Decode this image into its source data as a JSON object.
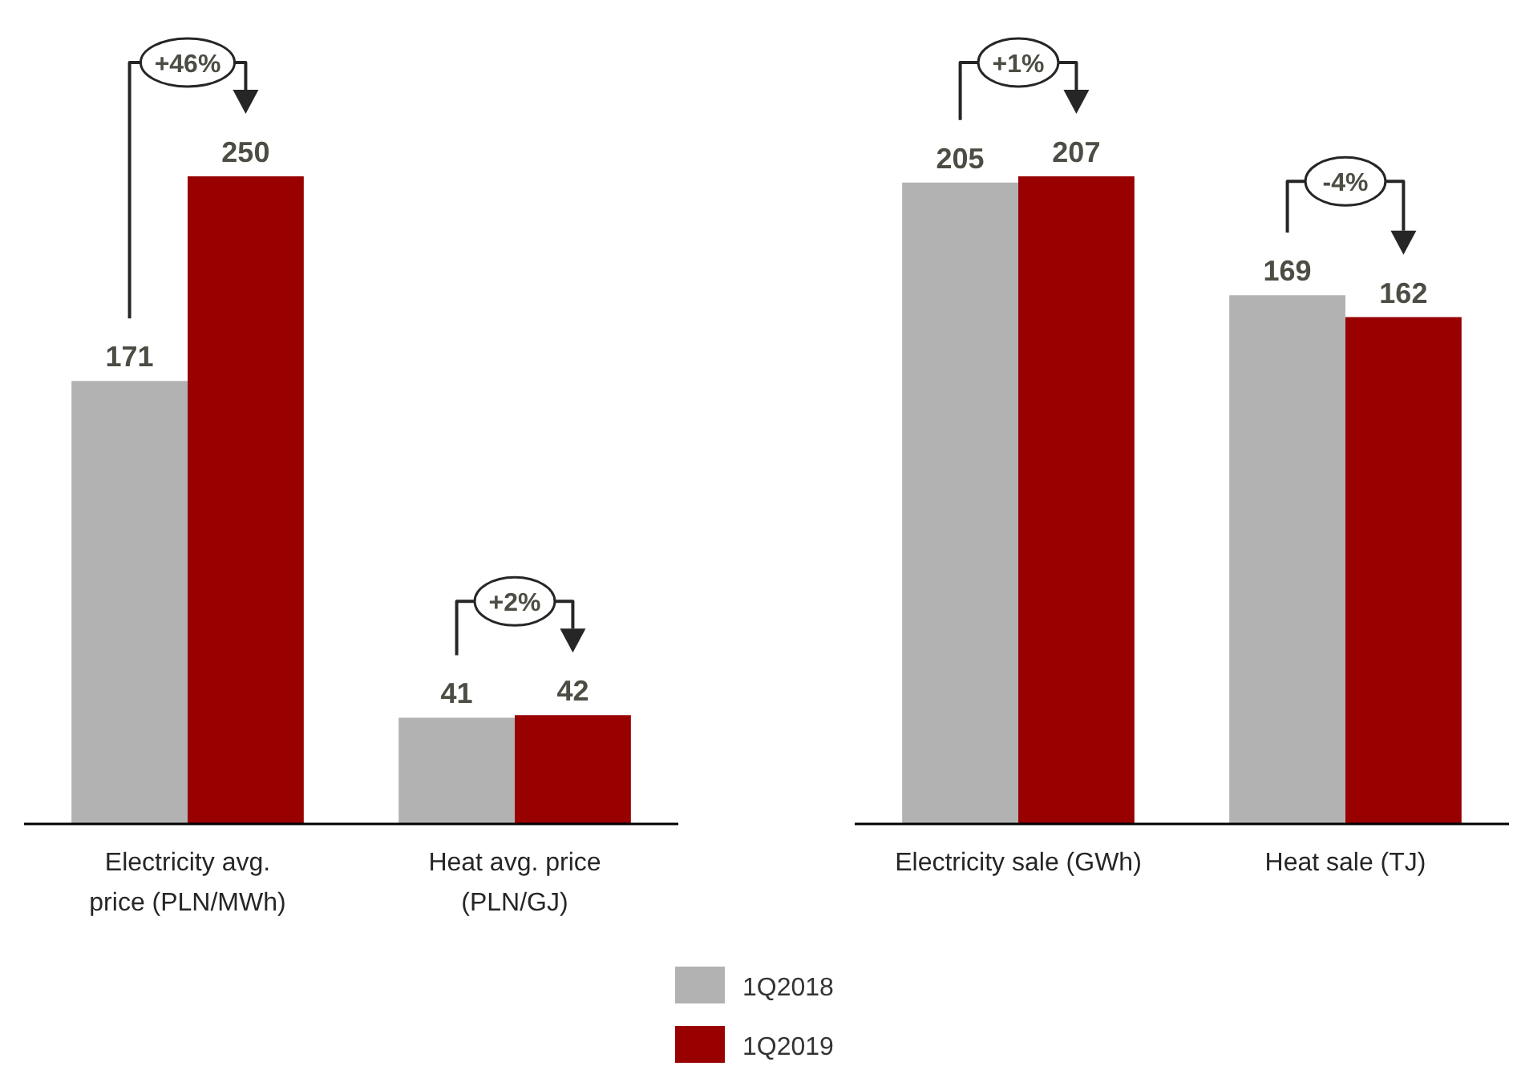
{
  "chart_data": [
    {
      "type": "bar",
      "categories": [
        "Electricity avg. price (PLN/MWh)",
        "Heat avg. price (PLN/GJ)"
      ],
      "series": [
        {
          "name": "1Q2018",
          "color": "#b2b2b2",
          "values": [
            171,
            41
          ]
        },
        {
          "name": "1Q2019",
          "color": "#990000",
          "values": [
            250,
            42
          ]
        }
      ],
      "data_labels": true,
      "legend": "bottom",
      "annotations": [
        "+46%",
        "+2%"
      ]
    },
    {
      "type": "bar",
      "categories": [
        "Electricity sale (GWh)",
        "Heat sale (TJ)"
      ],
      "series": [
        {
          "name": "1Q2018",
          "color": "#b2b2b2",
          "values": [
            205,
            169
          ]
        },
        {
          "name": "1Q2019",
          "color": "#990000",
          "values": [
            207,
            162
          ]
        }
      ],
      "data_labels": true,
      "legend": "bottom",
      "annotations": [
        "+1%",
        "-4%"
      ]
    }
  ]
}
